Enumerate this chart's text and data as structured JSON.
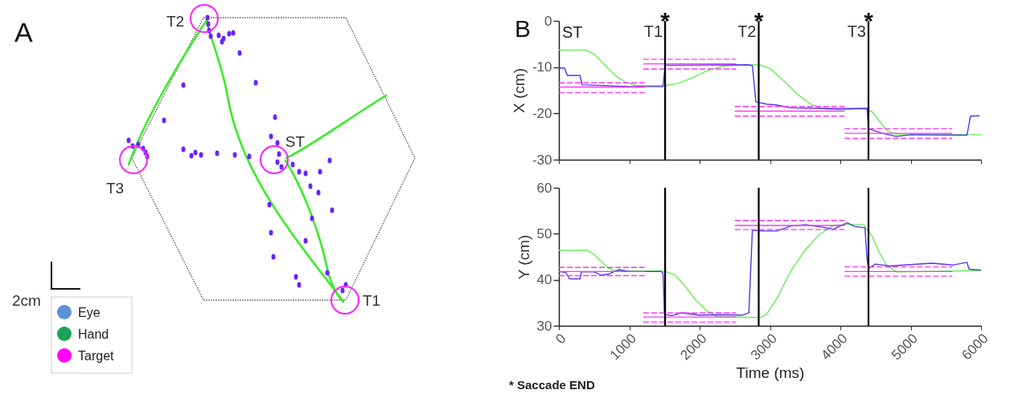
{
  "chart_data": [
    {
      "type": "other",
      "title": "A",
      "annotations": [
        "T2",
        "ST",
        "T3",
        "T1",
        "2cm"
      ],
      "legend": "bottom left",
      "series": [
        {
          "name": "Eye",
          "color": "#5b8fd8"
        },
        {
          "name": "Hand",
          "color": "#1aa155"
        },
        {
          "name": "Target",
          "color": "#ff00ff"
        }
      ]
    },
    {
      "type": "line",
      "title": "B",
      "ylabel": "X (cm)",
      "xlim": [
        0,
        6000
      ],
      "xticks": [
        0,
        1000,
        2000,
        3000,
        4000,
        5000,
        6000
      ],
      "ylim": [
        -30,
        0
      ],
      "yticks": [
        0,
        -10,
        -20,
        -30
      ],
      "tick_labels": "y",
      "grid": false,
      "series": [
        {
          "color": "#66ee55",
          "x": [
            0,
            380,
            500,
            650,
            800,
            950,
            1100,
            1500,
            1700,
            1900,
            2100,
            2300,
            2500,
            2850,
            3000,
            3200,
            3400,
            3600,
            3800,
            4000,
            4350,
            4450,
            4550,
            4650,
            4800,
            6000
          ],
          "values": [
            -6.3,
            -6.3,
            -7.2,
            -9.5,
            -11.8,
            -13.3,
            -14,
            -14,
            -13.5,
            -12.3,
            -10.8,
            -9.9,
            -9.5,
            -9.5,
            -10.3,
            -13,
            -16,
            -18.2,
            -19.1,
            -19.2,
            -19,
            -19.6,
            -21.5,
            -23.5,
            -24.6,
            -24.6
          ]
        },
        {
          "color": "#5533ee",
          "x": [
            0,
            80,
            120,
            300,
            330,
            1000,
            1480,
            1510,
            2700,
            2750,
            2800,
            2950,
            3100,
            3300,
            4000,
            4380,
            4400,
            4600,
            4800,
            5000,
            5800,
            5850,
            5980
          ],
          "values": [
            -10.2,
            -10.2,
            -11.8,
            -11.8,
            -13.8,
            -14.2,
            -14.2,
            -9.6,
            -9.5,
            -9.7,
            -17.5,
            -18,
            -18.2,
            -18.8,
            -19,
            -18.9,
            -23.3,
            -24.3,
            -25,
            -24.6,
            -24.7,
            -20.6,
            -20.5
          ]
        },
        {
          "color": "#ff33ff",
          "line_style": "solid",
          "x": [
            0,
            1220
          ],
          "values": [
            -14.3,
            -14.3
          ]
        },
        {
          "color": "#ff33ff",
          "line_style": "dashed",
          "x": [
            0,
            1220
          ],
          "values": [
            -13.4,
            -13.4
          ]
        },
        {
          "color": "#ff33ff",
          "line_style": "dashed",
          "x": [
            0,
            1220
          ],
          "values": [
            -15.5,
            -15.5
          ]
        },
        {
          "color": "#ff33ff",
          "line_style": "solid",
          "x": [
            1200,
            2520
          ],
          "values": [
            -9.3,
            -9.3
          ]
        },
        {
          "color": "#ff33ff",
          "line_style": "dashed",
          "x": [
            1200,
            2520
          ],
          "values": [
            -8.3,
            -8.3
          ]
        },
        {
          "color": "#ff33ff",
          "line_style": "dashed",
          "x": [
            1200,
            2520
          ],
          "values": [
            -10.4,
            -10.4
          ]
        },
        {
          "color": "#ff33ff",
          "line_style": "solid",
          "x": [
            2500,
            4060
          ],
          "values": [
            -19.5,
            -19.5
          ]
        },
        {
          "color": "#ff33ff",
          "line_style": "dashed",
          "x": [
            2500,
            4060
          ],
          "values": [
            -18.5,
            -18.5
          ]
        },
        {
          "color": "#ff33ff",
          "line_style": "dashed",
          "x": [
            2500,
            4060
          ],
          "values": [
            -20.6,
            -20.6
          ]
        },
        {
          "color": "#ff33ff",
          "line_style": "solid",
          "x": [
            4060,
            5590
          ],
          "values": [
            -24.3,
            -24.3
          ]
        },
        {
          "color": "#ff33ff",
          "line_style": "dashed",
          "x": [
            4060,
            5590
          ],
          "values": [
            -23.3,
            -23.3
          ]
        },
        {
          "color": "#ff33ff",
          "line_style": "dashed",
          "x": [
            4060,
            5590
          ],
          "values": [
            -25.4,
            -25.4
          ]
        }
      ],
      "ref_lines": [
        {
          "axis": "x",
          "value": 1510,
          "label": "T1",
          "color": "#000000"
        },
        {
          "axis": "x",
          "value": 2840,
          "label": "T2",
          "color": "#000000"
        },
        {
          "axis": "x",
          "value": 4400,
          "label": "T3",
          "color": "#000000"
        }
      ],
      "annotations": [
        "ST",
        {
          "text": "*",
          "x": 1510,
          "y": 0
        },
        {
          "text": "*",
          "x": 2840,
          "y": 0
        },
        {
          "text": "*",
          "x": 4400,
          "y": 0
        }
      ]
    },
    {
      "type": "line",
      "xlabel": "Time (ms)",
      "ylabel": "Y (cm)",
      "xlim": [
        0,
        6000
      ],
      "xticks": [
        0,
        1000,
        2000,
        3000,
        4000,
        5000,
        6000
      ],
      "ylim": [
        30,
        60
      ],
      "yticks": [
        30,
        40,
        50,
        60
      ],
      "grid": false,
      "series": [
        {
          "color": "#66ee55",
          "x": [
            0,
            400,
            500,
            600,
            700,
            800,
            1500,
            1650,
            1800,
            1950,
            2100,
            2250,
            2870,
            2950,
            3100,
            3300,
            3500,
            3700,
            3900,
            4050,
            4330,
            4450,
            4550,
            4650,
            4800,
            6000
          ],
          "values": [
            46.4,
            46.4,
            45.5,
            44,
            42.6,
            41.9,
            41.9,
            41,
            38.5,
            35.5,
            33.3,
            32,
            31.8,
            32.5,
            36,
            42,
            46.5,
            49.8,
            51.8,
            52,
            52,
            49.5,
            46,
            43.3,
            41.7,
            42
          ]
        },
        {
          "color": "#5533ee",
          "x": [
            0,
            100,
            150,
            300,
            320,
            500,
            600,
            700,
            850,
            1000,
            1450,
            1480,
            1500,
            1600,
            1750,
            2000,
            2300,
            2600,
            2700,
            2750,
            2900,
            3100,
            3300,
            3500,
            3800,
            3900,
            4100,
            4200,
            4350,
            4380,
            4400,
            4500,
            4700,
            5000,
            5300,
            5600,
            5800,
            5830,
            6000
          ],
          "values": [
            41.8,
            41.6,
            40.2,
            40.2,
            41.7,
            41.7,
            41,
            41.2,
            42.2,
            41.8,
            41.8,
            41.5,
            32.5,
            32.2,
            32.8,
            32.3,
            32.4,
            32.3,
            32.8,
            50.8,
            50.6,
            50.6,
            51.7,
            52,
            51.3,
            51,
            52.4,
            51.6,
            51.3,
            44.5,
            42.5,
            43.4,
            43,
            43.3,
            43.6,
            43.2,
            43.8,
            42.3,
            42.1
          ]
        },
        {
          "color": "#ff33ff",
          "line_style": "solid",
          "x": [
            0,
            1220
          ],
          "values": [
            41.8,
            41.8
          ]
        },
        {
          "color": "#ff33ff",
          "line_style": "dashed",
          "x": [
            0,
            1220
          ],
          "values": [
            42.7,
            42.7
          ]
        },
        {
          "color": "#ff33ff",
          "line_style": "dashed",
          "x": [
            0,
            1220
          ],
          "values": [
            40.9,
            40.9
          ]
        },
        {
          "color": "#ff33ff",
          "line_style": "solid",
          "x": [
            1200,
            2520
          ],
          "values": [
            31.9,
            31.9
          ]
        },
        {
          "color": "#ff33ff",
          "line_style": "dashed",
          "x": [
            1200,
            2520
          ],
          "values": [
            32.8,
            32.8
          ]
        },
        {
          "color": "#ff33ff",
          "line_style": "dashed",
          "x": [
            1200,
            2520
          ],
          "values": [
            30.8,
            30.8
          ]
        },
        {
          "color": "#ff33ff",
          "line_style": "solid",
          "x": [
            2500,
            4060
          ],
          "values": [
            51.8,
            51.8
          ]
        },
        {
          "color": "#ff33ff",
          "line_style": "dashed",
          "x": [
            2500,
            4060
          ],
          "values": [
            52.9,
            52.9
          ]
        },
        {
          "color": "#ff33ff",
          "line_style": "dashed",
          "x": [
            2500,
            4060
          ],
          "values": [
            50.9,
            50.9
          ]
        },
        {
          "color": "#ff33ff",
          "line_style": "solid",
          "x": [
            4060,
            5590
          ],
          "values": [
            41.8,
            41.8
          ]
        },
        {
          "color": "#ff33ff",
          "line_style": "dashed",
          "x": [
            4060,
            5590
          ],
          "values": [
            42.8,
            42.8
          ]
        },
        {
          "color": "#ff33ff",
          "line_style": "dashed",
          "x": [
            4060,
            5590
          ],
          "values": [
            40.8,
            40.8
          ]
        }
      ],
      "ref_lines": [
        {
          "axis": "x",
          "value": 1510,
          "color": "#000000"
        },
        {
          "axis": "x",
          "value": 2840,
          "color": "#000000"
        },
        {
          "axis": "x",
          "value": 4400,
          "color": "#000000"
        }
      ],
      "annotations": [
        "* Saccade END"
      ]
    }
  ]
}
